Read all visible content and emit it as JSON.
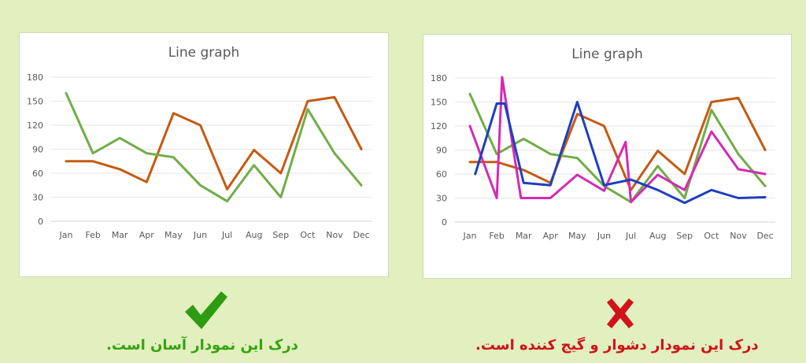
{
  "colors": {
    "background": "#e2efbf",
    "green": "#70ad47",
    "orange": "#c55a11",
    "blue": "#1f3fbf",
    "magenta": "#d42ab4",
    "good": "#34a40d",
    "bad": "#d01219"
  },
  "icons": {
    "good": "check-icon",
    "bad": "x-icon"
  },
  "captions": {
    "good": "درک این نمودار آسان است.",
    "bad": "درک این نمودار دشوار و گیج کننده است."
  },
  "chart_data": [
    {
      "type": "line",
      "title": "Line graph",
      "categories": [
        "Jan",
        "Feb",
        "Mar",
        "Apr",
        "May",
        "Jun",
        "Jul",
        "Aug",
        "Sep",
        "Oct",
        "Nov",
        "Dec"
      ],
      "yticks": [
        0,
        30,
        60,
        90,
        120,
        150,
        180
      ],
      "ylim": [
        0,
        180
      ],
      "grid": true,
      "series": [
        {
          "color": "#c55a11",
          "values": [
            75,
            75,
            65,
            49,
            135,
            120,
            40,
            89,
            60,
            150,
            155,
            90
          ]
        },
        {
          "color": "#70ad47",
          "values": [
            160,
            85,
            104,
            85,
            80,
            45,
            25,
            70,
            30,
            140,
            85,
            45
          ]
        }
      ]
    },
    {
      "type": "line",
      "title": "Line graph",
      "categories": [
        "Jan",
        "Feb",
        "Mar",
        "Apr",
        "May",
        "Jun",
        "Jul",
        "Aug",
        "Sep",
        "Oct",
        "Nov",
        "Dec"
      ],
      "yticks": [
        0,
        30,
        60,
        90,
        120,
        150,
        180
      ],
      "ylim": [
        0,
        180
      ],
      "grid": true,
      "series": [
        {
          "color": "#c55a11",
          "values": [
            75,
            75,
            65,
            49,
            135,
            120,
            40,
            89,
            60,
            150,
            155,
            90
          ]
        },
        {
          "color": "#70ad47",
          "values": [
            160,
            85,
            104,
            85,
            80,
            45,
            25,
            70,
            30,
            140,
            85,
            45
          ]
        },
        {
          "color": "#d42ab4",
          "values": [
            120,
            30,
            181,
            30,
            30,
            59,
            39,
            100,
            25,
            59,
            40,
            113,
            66,
            60
          ],
          "x": [
            0,
            1,
            1.2,
            1.9,
            3,
            4,
            5,
            5.8,
            6,
            7,
            8,
            9,
            10,
            11
          ]
        },
        {
          "color": "#1f3fbf",
          "values": [
            60,
            148,
            148,
            49,
            46,
            150,
            46,
            53,
            40,
            24,
            40,
            30,
            31
          ],
          "x": [
            0.2,
            1,
            1.3,
            2,
            3,
            4,
            5,
            6,
            7,
            8,
            9,
            10,
            11
          ]
        }
      ]
    }
  ]
}
